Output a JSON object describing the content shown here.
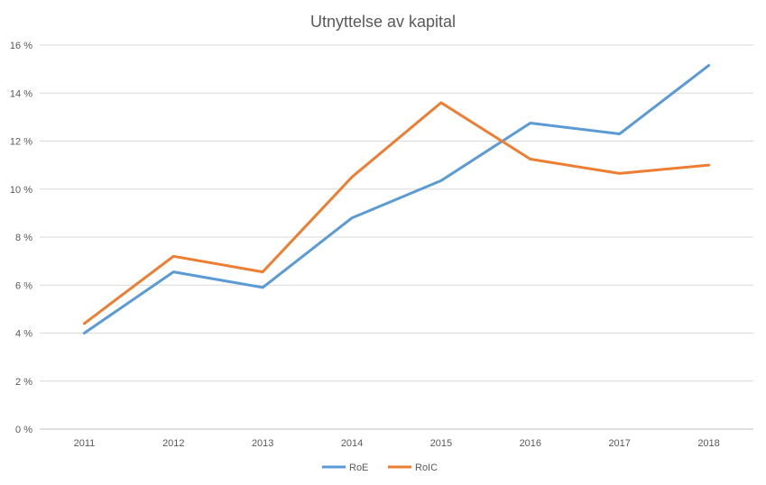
{
  "chart_data": {
    "type": "line",
    "title": "Utnyttelse av kapital",
    "xlabel": "",
    "ylabel": "",
    "categories": [
      "2011",
      "2012",
      "2013",
      "2014",
      "2015",
      "2016",
      "2017",
      "2018"
    ],
    "ylim": [
      0,
      16
    ],
    "yticks": [
      0,
      2,
      4,
      6,
      8,
      10,
      12,
      14,
      16
    ],
    "ytick_labels": [
      "0 %",
      "2 %",
      "4 %",
      "6 %",
      "8 %",
      "10 %",
      "12 %",
      "14 %",
      "16 %"
    ],
    "grid": true,
    "legend_position": "bottom",
    "series": [
      {
        "name": "RoE",
        "color": "#5B9BD5",
        "values": [
          4.0,
          6.55,
          5.9,
          8.8,
          10.35,
          12.75,
          12.3,
          15.15
        ]
      },
      {
        "name": "RoIC",
        "color": "#ED7D31",
        "values": [
          4.4,
          7.2,
          6.55,
          10.5,
          13.6,
          11.25,
          10.65,
          11.0
        ]
      }
    ]
  }
}
